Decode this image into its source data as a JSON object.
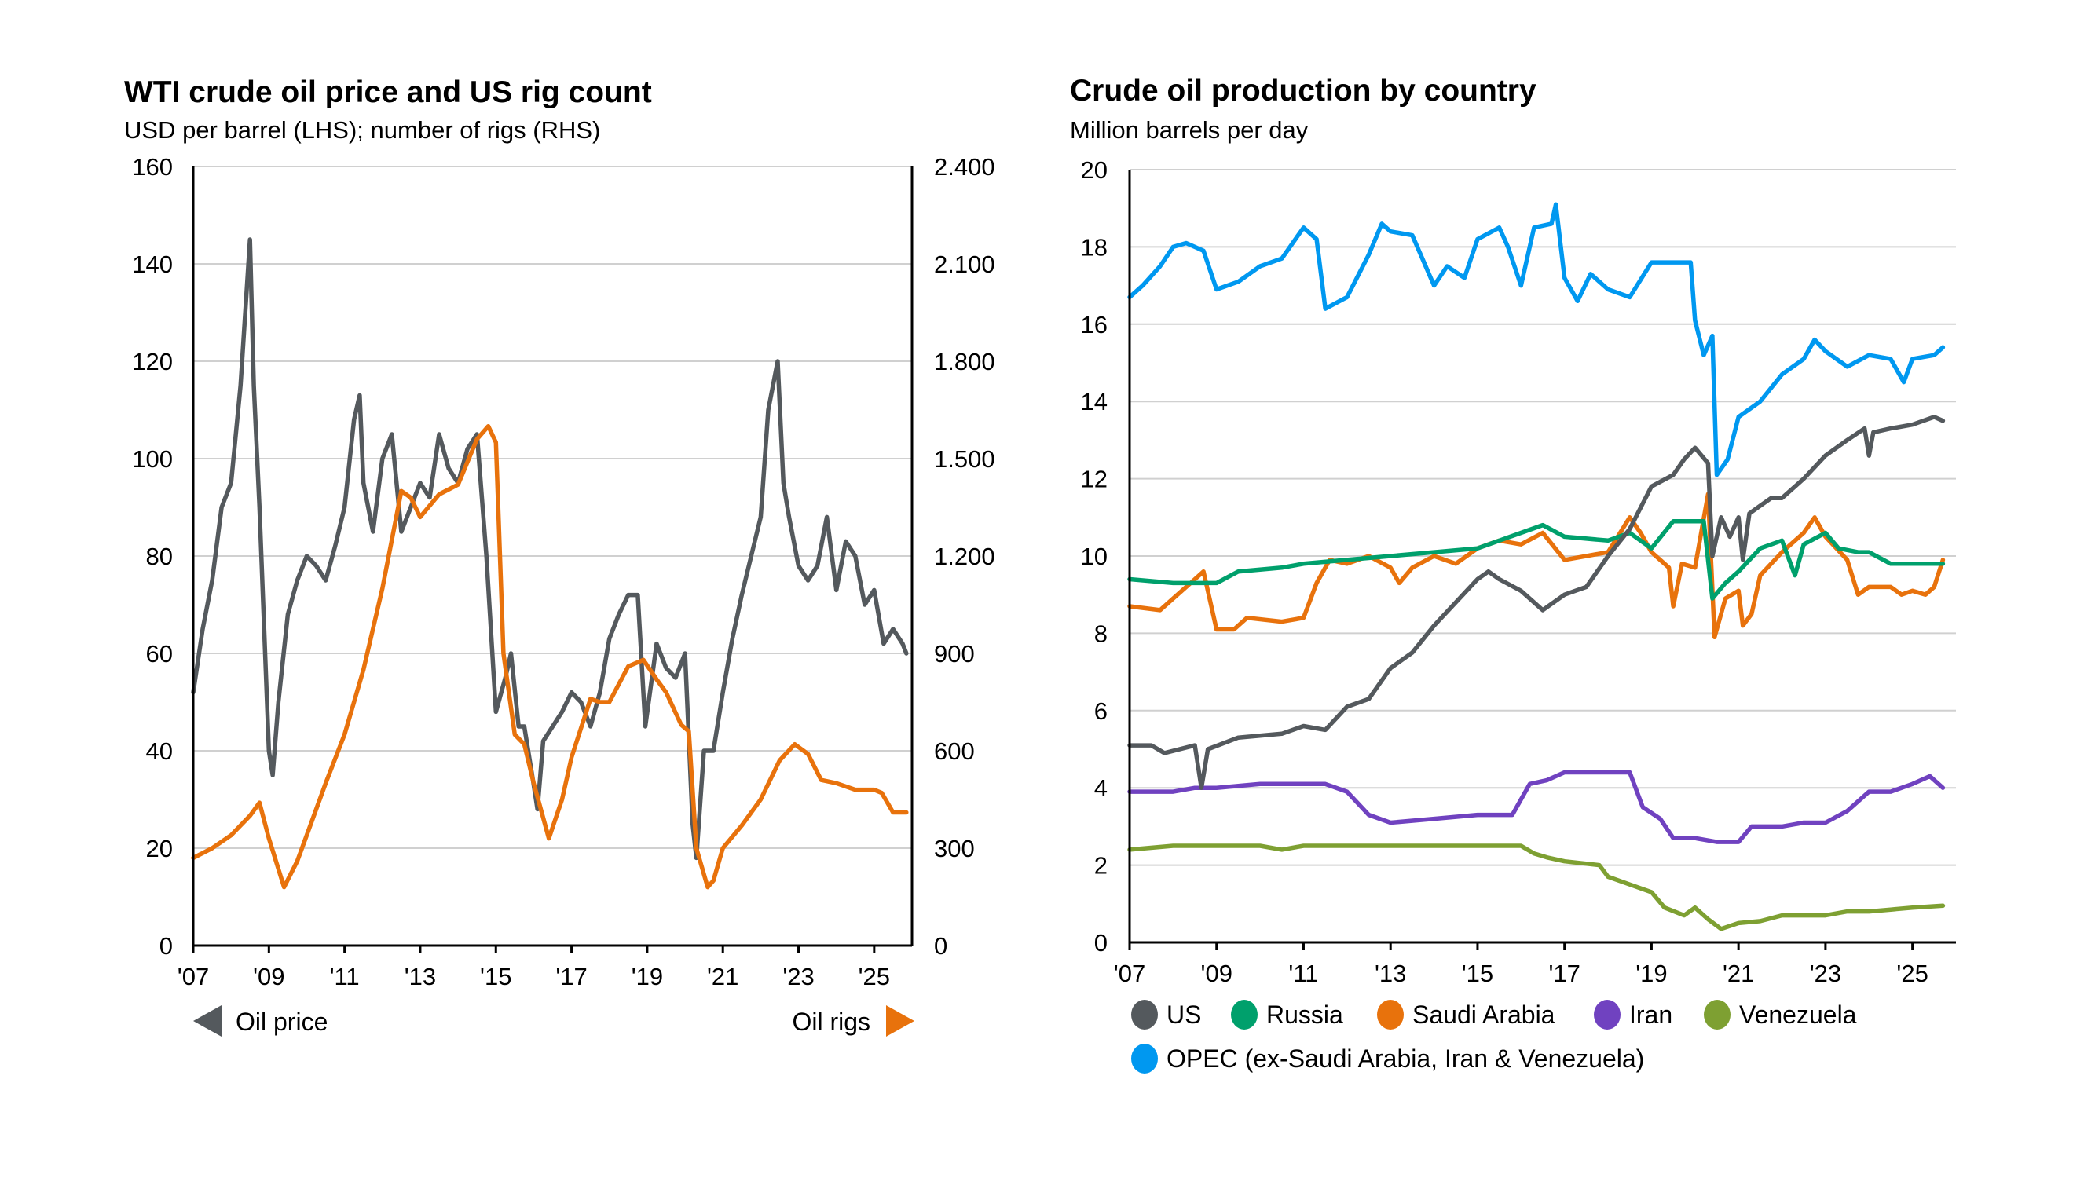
{
  "colors": {
    "oil_price": "#54595d",
    "oil_rigs": "#e8720c",
    "US": "#54595d",
    "Russia": "#00a06c",
    "Saudi Arabia": "#e8720c",
    "Iran": "#7042c0",
    "Venezuela": "#7ea032",
    "OPEC": "#0098f0"
  },
  "chart_data": [
    {
      "type": "line",
      "title": "WTI crude oil price and US rig count",
      "subtitle": "USD per barrel (LHS); number of rigs (RHS)",
      "xlim": [
        2007,
        2026
      ],
      "x_ticks": [
        2007,
        2009,
        2011,
        2013,
        2015,
        2017,
        2019,
        2021,
        2023,
        2025
      ],
      "x_tick_labels": [
        "'07",
        "'09",
        "'11",
        "'13",
        "'15",
        "'17",
        "'19",
        "'21",
        "'23",
        "'25"
      ],
      "ylim_left": [
        0,
        160
      ],
      "y_left_ticks": [
        0,
        20,
        40,
        60,
        80,
        100,
        120,
        140,
        160
      ],
      "y_left_tick_labels": [
        "0",
        "20",
        "40",
        "60",
        "80",
        "100",
        "120",
        "140",
        "160"
      ],
      "ylim_right": [
        0,
        2400
      ],
      "y_right_ticks": [
        0,
        300,
        600,
        900,
        1200,
        1500,
        1800,
        2100,
        2400
      ],
      "y_right_tick_labels": [
        "0",
        "300",
        "600",
        "900",
        "1.200",
        "1.500",
        "1.800",
        "2.100",
        "2.400"
      ],
      "grid": true,
      "legend": {
        "left_label": "Oil price",
        "right_label": "Oil rigs",
        "placement": "bottom"
      },
      "series": [
        {
          "name": "Oil price",
          "axis": "left",
          "color_key": "oil_price",
          "x": [
            2007,
            2007.25,
            2007.5,
            2007.75,
            2008,
            2008.25,
            2008.5,
            2008.6,
            2008.75,
            2008.9,
            2009,
            2009.1,
            2009.25,
            2009.5,
            2009.75,
            2010,
            2010.25,
            2010.5,
            2010.75,
            2011,
            2011.25,
            2011.4,
            2011.5,
            2011.75,
            2012,
            2012.25,
            2012.5,
            2012.75,
            2013,
            2013.25,
            2013.5,
            2013.75,
            2014,
            2014.25,
            2014.5,
            2014.75,
            2015,
            2015.25,
            2015.4,
            2015.6,
            2015.75,
            2016,
            2016.1,
            2016.25,
            2016.5,
            2016.75,
            2017,
            2017.25,
            2017.5,
            2017.75,
            2018,
            2018.25,
            2018.5,
            2018.75,
            2018.95,
            2019.25,
            2019.5,
            2019.75,
            2020,
            2020.2,
            2020.3,
            2020.5,
            2020.75,
            2021,
            2021.25,
            2021.5,
            2021.75,
            2022,
            2022.2,
            2022.45,
            2022.6,
            2022.75,
            2023,
            2023.25,
            2023.5,
            2023.75,
            2024,
            2024.25,
            2024.5,
            2024.75,
            2025,
            2025.25,
            2025.5,
            2025.75,
            2025.85
          ],
          "y": [
            52,
            65,
            75,
            90,
            95,
            115,
            145,
            115,
            90,
            60,
            40,
            35,
            50,
            68,
            75,
            80,
            78,
            75,
            82,
            90,
            108,
            113,
            95,
            85,
            100,
            105,
            85,
            90,
            95,
            92,
            105,
            98,
            95,
            102,
            105,
            80,
            48,
            55,
            60,
            45,
            45,
            33,
            28,
            42,
            45,
            48,
            52,
            50,
            45,
            52,
            63,
            68,
            72,
            72,
            45,
            62,
            57,
            55,
            60,
            25,
            18,
            40,
            40,
            52,
            63,
            72,
            80,
            88,
            110,
            120,
            95,
            88,
            78,
            75,
            78,
            88,
            73,
            83,
            80,
            70,
            73,
            62,
            65,
            62,
            60
          ]
        },
        {
          "name": "Oil rigs",
          "axis": "right",
          "color_key": "oil_rigs",
          "x": [
            2007,
            2007.5,
            2008,
            2008.5,
            2008.75,
            2009,
            2009.4,
            2009.75,
            2010,
            2010.5,
            2011,
            2011.5,
            2012,
            2012.5,
            2012.75,
            2013,
            2013.5,
            2014,
            2014.5,
            2014.8,
            2015,
            2015.2,
            2015.5,
            2015.75,
            2016,
            2016.4,
            2016.75,
            2017,
            2017.5,
            2017.75,
            2018,
            2018.5,
            2018.9,
            2019.25,
            2019.5,
            2019.9,
            2020.1,
            2020.3,
            2020.6,
            2020.75,
            2021,
            2021.5,
            2022,
            2022.5,
            2022.9,
            2023.25,
            2023.6,
            2024,
            2024.5,
            2025,
            2025.2,
            2025.5,
            2025.85
          ],
          "y": [
            270,
            300,
            340,
            400,
            440,
            330,
            180,
            260,
            340,
            500,
            650,
            850,
            1100,
            1400,
            1380,
            1320,
            1390,
            1420,
            1560,
            1600,
            1550,
            900,
            650,
            620,
            500,
            330,
            450,
            580,
            760,
            750,
            750,
            860,
            880,
            820,
            780,
            680,
            660,
            300,
            180,
            200,
            300,
            370,
            450,
            570,
            620,
            590,
            510,
            500,
            480,
            480,
            470,
            410,
            410
          ]
        }
      ]
    },
    {
      "type": "line",
      "title": "Crude oil production by country",
      "subtitle": "Million barrels per day",
      "xlim": [
        2007,
        2026
      ],
      "x_ticks": [
        2007,
        2009,
        2011,
        2013,
        2015,
        2017,
        2019,
        2021,
        2023,
        2025
      ],
      "x_tick_labels": [
        "'07",
        "'09",
        "'11",
        "'13",
        "'15",
        "'17",
        "'19",
        "'21",
        "'23",
        "'25"
      ],
      "ylim": [
        0,
        20
      ],
      "y_ticks": [
        0,
        2,
        4,
        6,
        8,
        10,
        12,
        14,
        16,
        18,
        20
      ],
      "y_tick_labels": [
        "0",
        "2",
        "4",
        "6",
        "8",
        "10",
        "12",
        "14",
        "16",
        "18",
        "20"
      ],
      "grid": true,
      "legend_placement": "bottom",
      "series": [
        {
          "name": "US",
          "color_key": "US",
          "x": [
            2007,
            2007.5,
            2007.8,
            2008.5,
            2008.65,
            2008.8,
            2009.5,
            2010.5,
            2011,
            2011.5,
            2012,
            2012.5,
            2013,
            2013.5,
            2014,
            2014.5,
            2015,
            2015.25,
            2015.5,
            2016,
            2016.5,
            2017,
            2017.5,
            2018,
            2018.5,
            2019,
            2019.5,
            2019.75,
            2020,
            2020.3,
            2020.4,
            2020.6,
            2020.8,
            2021,
            2021.1,
            2021.25,
            2021.5,
            2021.75,
            2022,
            2022.5,
            2023,
            2023.5,
            2023.9,
            2024,
            2024.1,
            2024.5,
            2025,
            2025.5,
            2025.7
          ],
          "y": [
            5.1,
            5.1,
            4.9,
            5.1,
            4.0,
            5.0,
            5.3,
            5.4,
            5.6,
            5.5,
            6.1,
            6.3,
            7.1,
            7.5,
            8.2,
            8.8,
            9.4,
            9.6,
            9.4,
            9.1,
            8.6,
            9.0,
            9.2,
            10.0,
            10.7,
            11.8,
            12.1,
            12.5,
            12.8,
            12.4,
            10.0,
            11.0,
            10.5,
            11.0,
            9.9,
            11.1,
            11.3,
            11.5,
            11.5,
            12.0,
            12.6,
            13.0,
            13.3,
            12.6,
            13.2,
            13.3,
            13.4,
            13.6,
            13.5
          ]
        },
        {
          "name": "Russia",
          "color_key": "Russia",
          "x": [
            2007,
            2008,
            2009,
            2009.5,
            2010.5,
            2011,
            2012,
            2013,
            2014,
            2015,
            2016,
            2016.5,
            2017,
            2018,
            2018.5,
            2019,
            2019.5,
            2020.2,
            2020.4,
            2020.7,
            2021,
            2021.5,
            2022,
            2022.3,
            2022.5,
            2023,
            2023.3,
            2023.75,
            2024,
            2024.5,
            2025,
            2025.7
          ],
          "y": [
            9.4,
            9.3,
            9.3,
            9.6,
            9.7,
            9.8,
            9.9,
            10.0,
            10.1,
            10.2,
            10.6,
            10.8,
            10.5,
            10.4,
            10.6,
            10.2,
            10.9,
            10.9,
            8.9,
            9.3,
            9.6,
            10.2,
            10.4,
            9.5,
            10.3,
            10.6,
            10.2,
            10.1,
            10.1,
            9.8,
            9.8,
            9.8
          ]
        },
        {
          "name": "Saudi Arabia",
          "color_key": "Saudi Arabia",
          "x": [
            2007,
            2007.7,
            2008.3,
            2008.7,
            2009,
            2009.4,
            2009.7,
            2010.5,
            2011,
            2011.3,
            2011.6,
            2012,
            2012.5,
            2013,
            2013.2,
            2013.5,
            2014,
            2014.5,
            2015,
            2015.5,
            2016,
            2016.5,
            2017,
            2018,
            2018.5,
            2018.75,
            2019,
            2019.4,
            2019.5,
            2019.7,
            2020,
            2020.3,
            2020.45,
            2020.7,
            2021,
            2021.1,
            2021.3,
            2021.5,
            2022,
            2022.5,
            2022.75,
            2023,
            2023.5,
            2023.75,
            2024,
            2024.5,
            2024.75,
            2025,
            2025.3,
            2025.5,
            2025.7
          ],
          "y": [
            8.7,
            8.6,
            9.2,
            9.6,
            8.1,
            8.1,
            8.4,
            8.3,
            8.4,
            9.3,
            9.9,
            9.8,
            10.0,
            9.7,
            9.3,
            9.7,
            10.0,
            9.8,
            10.2,
            10.4,
            10.3,
            10.6,
            9.9,
            10.1,
            11.0,
            10.6,
            10.1,
            9.7,
            8.7,
            9.8,
            9.7,
            11.6,
            7.9,
            8.9,
            9.1,
            8.2,
            8.5,
            9.5,
            10.1,
            10.6,
            11.0,
            10.5,
            9.9,
            9.0,
            9.2,
            9.2,
            9.0,
            9.1,
            9.0,
            9.2,
            9.9
          ]
        },
        {
          "name": "Iran",
          "color_key": "Iran",
          "x": [
            2007,
            2008,
            2008.5,
            2009,
            2010,
            2011,
            2011.5,
            2012,
            2012.5,
            2013,
            2014,
            2015,
            2015.8,
            2016.2,
            2016.6,
            2017,
            2018,
            2018.5,
            2018.8,
            2019.2,
            2019.5,
            2020,
            2020.5,
            2021,
            2021.3,
            2022,
            2022.5,
            2023,
            2023.5,
            2024,
            2024.5,
            2025,
            2025.4,
            2025.7
          ],
          "y": [
            3.9,
            3.9,
            4.0,
            4.0,
            4.1,
            4.1,
            4.1,
            3.9,
            3.3,
            3.1,
            3.2,
            3.3,
            3.3,
            4.1,
            4.2,
            4.4,
            4.4,
            4.4,
            3.5,
            3.2,
            2.7,
            2.7,
            2.6,
            2.6,
            3.0,
            3.0,
            3.1,
            3.1,
            3.4,
            3.9,
            3.9,
            4.1,
            4.3,
            4.0
          ]
        },
        {
          "name": "Venezuela",
          "color_key": "Venezuela",
          "x": [
            2007,
            2008,
            2009,
            2010,
            2010.5,
            2011,
            2016,
            2016.3,
            2016.6,
            2017,
            2017.8,
            2018,
            2018.5,
            2019,
            2019.3,
            2019.75,
            2020,
            2020.3,
            2020.6,
            2021,
            2021.5,
            2022,
            2022.5,
            2023,
            2023.5,
            2024,
            2024.5,
            2025,
            2025.7
          ],
          "y": [
            2.4,
            2.5,
            2.5,
            2.5,
            2.4,
            2.5,
            2.5,
            2.3,
            2.2,
            2.1,
            2.0,
            1.7,
            1.5,
            1.3,
            0.9,
            0.7,
            0.9,
            0.6,
            0.35,
            0.5,
            0.55,
            0.7,
            0.7,
            0.7,
            0.8,
            0.8,
            0.85,
            0.9,
            0.95
          ]
        },
        {
          "name": "OPEC (ex-Saudi Arabia, Iran & Venezuela)",
          "color_key": "OPEC",
          "x": [
            2007,
            2007.3,
            2007.7,
            2008,
            2008.3,
            2008.7,
            2009,
            2009.5,
            2010,
            2010.5,
            2011,
            2011.3,
            2011.5,
            2012,
            2012.5,
            2012.8,
            2013,
            2013.5,
            2014,
            2014.3,
            2014.7,
            2015,
            2015.5,
            2015.7,
            2016,
            2016.3,
            2016.7,
            2016.8,
            2017,
            2017.3,
            2017.6,
            2018,
            2018.5,
            2019,
            2019.5,
            2019.9,
            2020,
            2020.2,
            2020.4,
            2020.5,
            2020.75,
            2021,
            2021.5,
            2022,
            2022.5,
            2022.75,
            2023,
            2023.5,
            2024,
            2024.5,
            2024.8,
            2025,
            2025.5,
            2025.7
          ],
          "y": [
            16.7,
            17.0,
            17.5,
            18.0,
            18.1,
            17.9,
            16.9,
            17.1,
            17.5,
            17.7,
            18.5,
            18.2,
            16.4,
            16.7,
            17.8,
            18.6,
            18.4,
            18.3,
            17.0,
            17.5,
            17.2,
            18.2,
            18.5,
            18.0,
            17.0,
            18.5,
            18.6,
            19.1,
            17.2,
            16.6,
            17.3,
            16.9,
            16.7,
            17.6,
            17.6,
            17.6,
            16.1,
            15.2,
            15.7,
            12.1,
            12.5,
            13.6,
            14.0,
            14.7,
            15.1,
            15.6,
            15.3,
            14.9,
            15.2,
            15.1,
            14.5,
            15.1,
            15.2,
            15.4
          ]
        }
      ]
    }
  ]
}
